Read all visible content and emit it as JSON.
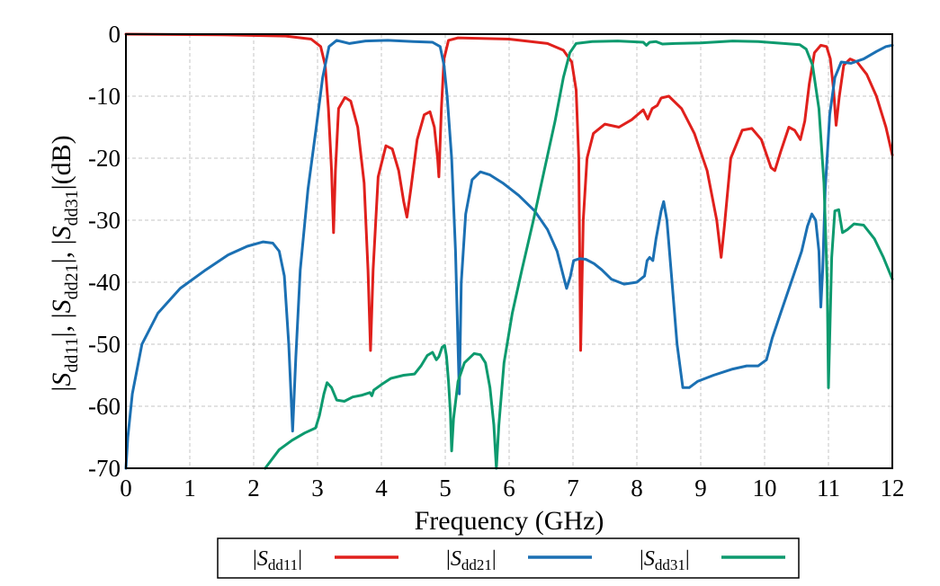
{
  "chart_data": {
    "type": "line",
    "xlabel": "Frequency (GHz)",
    "ylabel": {
      "left": "|",
      "s": "S",
      "sep": "|,  |",
      "end": "|(dB)"
    },
    "xlim": [
      0,
      12
    ],
    "ylim": [
      -70,
      0
    ],
    "x_ticks": [
      0,
      1,
      2,
      3,
      4,
      5,
      6,
      7,
      8,
      9,
      10,
      11,
      12
    ],
    "y_ticks": [
      0,
      -10,
      -20,
      -30,
      -40,
      -50,
      -60,
      -70
    ],
    "grid": true,
    "legend_position": "bottom",
    "series": [
      {
        "name": "dd11",
        "color": "#e0201c",
        "points": [
          [
            0,
            0
          ],
          [
            1.5,
            -0.1
          ],
          [
            2.5,
            -0.3
          ],
          [
            2.9,
            -0.8
          ],
          [
            3.05,
            -2
          ],
          [
            3.12,
            -5
          ],
          [
            3.17,
            -12
          ],
          [
            3.22,
            -22
          ],
          [
            3.25,
            -32
          ],
          [
            3.28,
            -22
          ],
          [
            3.33,
            -12
          ],
          [
            3.43,
            -10.2
          ],
          [
            3.52,
            -10.8
          ],
          [
            3.63,
            -15
          ],
          [
            3.73,
            -24
          ],
          [
            3.79,
            -38
          ],
          [
            3.83,
            -51
          ],
          [
            3.87,
            -38
          ],
          [
            3.95,
            -23
          ],
          [
            4.07,
            -18
          ],
          [
            4.17,
            -18.5
          ],
          [
            4.27,
            -22
          ],
          [
            4.35,
            -27
          ],
          [
            4.4,
            -29.5
          ],
          [
            4.46,
            -25
          ],
          [
            4.56,
            -17
          ],
          [
            4.67,
            -13
          ],
          [
            4.76,
            -12.5
          ],
          [
            4.83,
            -15
          ],
          [
            4.88,
            -20
          ],
          [
            4.9,
            -23
          ],
          [
            4.94,
            -12
          ],
          [
            4.98,
            -4
          ],
          [
            5.05,
            -1
          ],
          [
            5.2,
            -0.6
          ],
          [
            6.0,
            -0.8
          ],
          [
            6.6,
            -1.5
          ],
          [
            6.85,
            -2.6
          ],
          [
            6.98,
            -4.5
          ],
          [
            7.05,
            -9
          ],
          [
            7.09,
            -20
          ],
          [
            7.12,
            -51
          ],
          [
            7.16,
            -30
          ],
          [
            7.22,
            -20
          ],
          [
            7.32,
            -16
          ],
          [
            7.5,
            -14.5
          ],
          [
            7.72,
            -15
          ],
          [
            7.92,
            -13.8
          ],
          [
            8.1,
            -12.2
          ],
          [
            8.17,
            -13.7
          ],
          [
            8.24,
            -12
          ],
          [
            8.32,
            -11.5
          ],
          [
            8.38,
            -10.3
          ],
          [
            8.5,
            -10
          ],
          [
            8.7,
            -12
          ],
          [
            8.9,
            -16
          ],
          [
            9.1,
            -22
          ],
          [
            9.25,
            -30
          ],
          [
            9.32,
            -36
          ],
          [
            9.37,
            -31
          ],
          [
            9.47,
            -20
          ],
          [
            9.65,
            -15.5
          ],
          [
            9.8,
            -15.2
          ],
          [
            9.95,
            -17
          ],
          [
            10.1,
            -21.5
          ],
          [
            10.16,
            -22
          ],
          [
            10.25,
            -19
          ],
          [
            10.38,
            -15
          ],
          [
            10.47,
            -15.5
          ],
          [
            10.56,
            -17
          ],
          [
            10.63,
            -14
          ],
          [
            10.7,
            -8
          ],
          [
            10.78,
            -3
          ],
          [
            10.88,
            -1.8
          ],
          [
            10.97,
            -2
          ],
          [
            11.03,
            -4
          ],
          [
            11.08,
            -9
          ],
          [
            11.12,
            -14.7
          ],
          [
            11.17,
            -10
          ],
          [
            11.24,
            -5
          ],
          [
            11.34,
            -4
          ],
          [
            11.45,
            -4.5
          ],
          [
            11.6,
            -6.5
          ],
          [
            11.75,
            -10
          ],
          [
            11.9,
            -15
          ],
          [
            12.0,
            -19.5
          ]
        ]
      },
      {
        "name": "dd21",
        "color": "#1b70b3",
        "points": [
          [
            0,
            -70
          ],
          [
            0.03,
            -65
          ],
          [
            0.1,
            -58
          ],
          [
            0.25,
            -50
          ],
          [
            0.5,
            -45
          ],
          [
            0.85,
            -41
          ],
          [
            1.25,
            -38
          ],
          [
            1.6,
            -35.6
          ],
          [
            1.9,
            -34.2
          ],
          [
            2.15,
            -33.5
          ],
          [
            2.3,
            -33.7
          ],
          [
            2.4,
            -35
          ],
          [
            2.48,
            -39
          ],
          [
            2.55,
            -50
          ],
          [
            2.61,
            -64
          ],
          [
            2.66,
            -52
          ],
          [
            2.73,
            -38
          ],
          [
            2.85,
            -25
          ],
          [
            2.98,
            -15
          ],
          [
            3.08,
            -7
          ],
          [
            3.18,
            -2
          ],
          [
            3.3,
            -1
          ],
          [
            3.5,
            -1.5
          ],
          [
            3.75,
            -1.1
          ],
          [
            4.1,
            -1
          ],
          [
            4.5,
            -1.2
          ],
          [
            4.8,
            -1.3
          ],
          [
            4.92,
            -2
          ],
          [
            4.98,
            -5
          ],
          [
            5.03,
            -10
          ],
          [
            5.1,
            -20
          ],
          [
            5.16,
            -35
          ],
          [
            5.22,
            -58
          ],
          [
            5.25,
            -40
          ],
          [
            5.32,
            -29
          ],
          [
            5.42,
            -23.5
          ],
          [
            5.55,
            -22.2
          ],
          [
            5.7,
            -22.7
          ],
          [
            5.9,
            -24
          ],
          [
            6.15,
            -26
          ],
          [
            6.4,
            -28.5
          ],
          [
            6.6,
            -31.5
          ],
          [
            6.75,
            -35
          ],
          [
            6.85,
            -39
          ],
          [
            6.9,
            -41
          ],
          [
            6.96,
            -39
          ],
          [
            7.01,
            -36.5
          ],
          [
            7.1,
            -36.2
          ],
          [
            7.2,
            -36.3
          ],
          [
            7.33,
            -37
          ],
          [
            7.45,
            -38
          ],
          [
            7.6,
            -39.5
          ],
          [
            7.8,
            -40.3
          ],
          [
            8.0,
            -40
          ],
          [
            8.12,
            -39
          ],
          [
            8.16,
            -36.5
          ],
          [
            8.2,
            -36
          ],
          [
            8.25,
            -36.5
          ],
          [
            8.3,
            -33
          ],
          [
            8.38,
            -28.5
          ],
          [
            8.42,
            -27
          ],
          [
            8.47,
            -30
          ],
          [
            8.55,
            -40
          ],
          [
            8.63,
            -50
          ],
          [
            8.72,
            -57
          ],
          [
            8.82,
            -57
          ],
          [
            8.95,
            -56
          ],
          [
            9.2,
            -55
          ],
          [
            9.5,
            -54
          ],
          [
            9.72,
            -53.5
          ],
          [
            9.9,
            -53.5
          ],
          [
            10.03,
            -52.5
          ],
          [
            10.12,
            -49
          ],
          [
            10.25,
            -45
          ],
          [
            10.45,
            -39
          ],
          [
            10.58,
            -35
          ],
          [
            10.67,
            -31
          ],
          [
            10.74,
            -29
          ],
          [
            10.8,
            -30
          ],
          [
            10.85,
            -35
          ],
          [
            10.88,
            -44
          ],
          [
            10.91,
            -38
          ],
          [
            10.95,
            -25
          ],
          [
            11.02,
            -13
          ],
          [
            11.1,
            -7
          ],
          [
            11.2,
            -4.5
          ],
          [
            11.35,
            -4.7
          ],
          [
            11.55,
            -4
          ],
          [
            11.75,
            -2.8
          ],
          [
            11.9,
            -2
          ],
          [
            12.0,
            -1.8
          ]
        ]
      },
      {
        "name": "dd31",
        "color": "#0d9a6e",
        "points": [
          [
            2.18,
            -70
          ],
          [
            2.4,
            -67
          ],
          [
            2.6,
            -65.5
          ],
          [
            2.8,
            -64.3
          ],
          [
            2.97,
            -63.5
          ],
          [
            3.03,
            -61.5
          ],
          [
            3.1,
            -58
          ],
          [
            3.15,
            -56.2
          ],
          [
            3.22,
            -57
          ],
          [
            3.3,
            -59
          ],
          [
            3.42,
            -59.2
          ],
          [
            3.55,
            -58.5
          ],
          [
            3.7,
            -58.2
          ],
          [
            3.82,
            -57.8
          ],
          [
            3.85,
            -58.3
          ],
          [
            3.88,
            -57.4
          ],
          [
            4.0,
            -56.5
          ],
          [
            4.15,
            -55.5
          ],
          [
            4.35,
            -55
          ],
          [
            4.52,
            -54.8
          ],
          [
            4.62,
            -53.5
          ],
          [
            4.72,
            -51.8
          ],
          [
            4.8,
            -51.3
          ],
          [
            4.86,
            -52.5
          ],
          [
            4.9,
            -52
          ],
          [
            4.95,
            -50.5
          ],
          [
            4.99,
            -50.2
          ],
          [
            5.02,
            -52
          ],
          [
            5.05,
            -56
          ],
          [
            5.08,
            -61
          ],
          [
            5.1,
            -67.2
          ],
          [
            5.13,
            -62
          ],
          [
            5.2,
            -56
          ],
          [
            5.3,
            -53
          ],
          [
            5.45,
            -51.5
          ],
          [
            5.55,
            -51.7
          ],
          [
            5.63,
            -53
          ],
          [
            5.7,
            -57
          ],
          [
            5.76,
            -63
          ],
          [
            5.8,
            -70
          ],
          [
            5.84,
            -63
          ],
          [
            5.92,
            -53
          ],
          [
            6.05,
            -45
          ],
          [
            6.2,
            -38
          ],
          [
            6.38,
            -30
          ],
          [
            6.55,
            -22
          ],
          [
            6.72,
            -14
          ],
          [
            6.85,
            -7
          ],
          [
            6.95,
            -3
          ],
          [
            7.05,
            -1.5
          ],
          [
            7.3,
            -1.2
          ],
          [
            7.7,
            -1.1
          ],
          [
            8.1,
            -1.3
          ],
          [
            8.15,
            -1.8
          ],
          [
            8.2,
            -1.3
          ],
          [
            8.3,
            -1.2
          ],
          [
            8.4,
            -1.6
          ],
          [
            8.6,
            -1.5
          ],
          [
            9.0,
            -1.4
          ],
          [
            9.5,
            -1.1
          ],
          [
            9.9,
            -1.2
          ],
          [
            10.3,
            -1.5
          ],
          [
            10.55,
            -1.7
          ],
          [
            10.65,
            -2.4
          ],
          [
            10.75,
            -5
          ],
          [
            10.85,
            -12
          ],
          [
            10.93,
            -24
          ],
          [
            10.98,
            -40
          ],
          [
            11.0,
            -57
          ],
          [
            11.05,
            -36
          ],
          [
            11.1,
            -28.5
          ],
          [
            11.16,
            -28.3
          ],
          [
            11.22,
            -32
          ],
          [
            11.3,
            -31.5
          ],
          [
            11.4,
            -30.6
          ],
          [
            11.55,
            -30.8
          ],
          [
            11.72,
            -33
          ],
          [
            11.86,
            -36
          ],
          [
            12.0,
            -39.5
          ]
        ]
      }
    ]
  }
}
